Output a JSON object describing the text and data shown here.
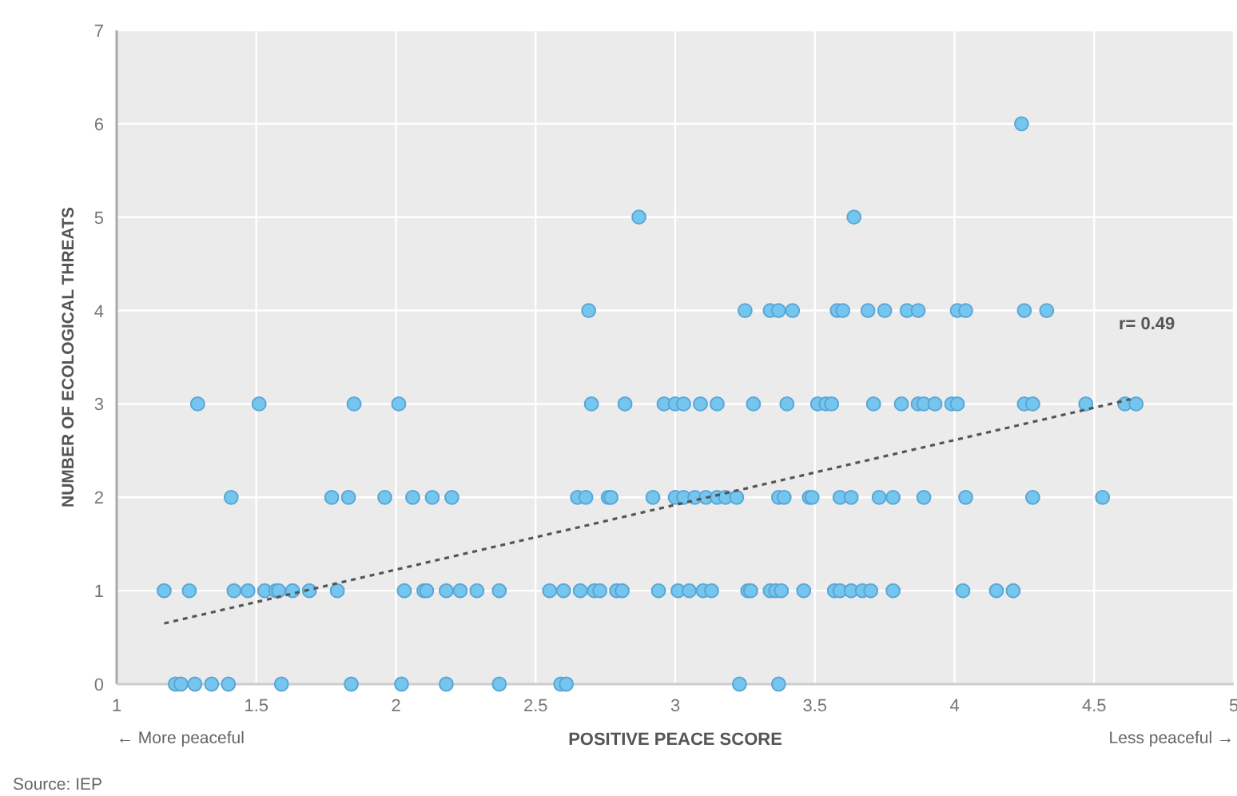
{
  "chart_data": {
    "type": "scatter",
    "xlabel": "POSITIVE PEACE SCORE",
    "ylabel": "NUMBER OF ECOLOGICAL THREATS",
    "xlim": [
      1,
      5
    ],
    "ylim": [
      0,
      7
    ],
    "xticks": [
      1,
      1.5,
      2,
      2.5,
      3,
      3.5,
      4,
      4.5,
      5
    ],
    "yticks": [
      0,
      1,
      2,
      3,
      4,
      5,
      6,
      7
    ],
    "grid": true,
    "marker": "circle",
    "series": [
      {
        "color": "#74c6ef",
        "x": [
          4.24,
          2.87,
          3.64,
          2.69,
          3.25,
          3.34,
          3.37,
          3.42,
          3.58,
          3.6,
          3.69,
          3.75,
          3.83,
          3.87,
          4.01,
          4.04,
          4.25,
          4.33,
          1.29,
          1.51,
          1.85,
          2.01,
          2.7,
          2.82,
          2.96,
          3.0,
          3.03,
          3.09,
          3.15,
          3.28,
          3.4,
          3.51,
          3.54,
          3.56,
          3.71,
          3.81,
          3.87,
          3.89,
          3.93,
          3.99,
          4.01,
          4.25,
          4.28,
          4.47,
          4.61,
          4.65,
          1.41,
          1.77,
          1.83,
          1.96,
          2.06,
          2.13,
          2.2,
          2.65,
          2.68,
          2.76,
          2.77,
          2.92,
          3.0,
          3.03,
          3.07,
          3.11,
          3.15,
          3.18,
          3.22,
          3.37,
          3.39,
          3.48,
          3.49,
          3.59,
          3.63,
          3.73,
          3.78,
          3.89,
          4.04,
          4.28,
          4.53,
          1.17,
          1.26,
          1.42,
          1.47,
          1.53,
          1.57,
          1.58,
          1.63,
          1.69,
          1.79,
          2.03,
          2.1,
          2.11,
          2.18,
          2.23,
          2.29,
          2.37,
          2.55,
          2.6,
          2.66,
          2.71,
          2.73,
          2.79,
          2.81,
          2.94,
          3.01,
          3.05,
          3.1,
          3.13,
          3.26,
          3.27,
          3.34,
          3.36,
          3.38,
          3.46,
          3.57,
          3.59,
          3.63,
          3.67,
          3.7,
          3.78,
          4.03,
          4.15,
          4.21,
          1.21,
          1.23,
          1.28,
          1.34,
          1.4,
          1.59,
          1.84,
          2.02,
          2.18,
          2.37,
          2.59,
          2.61,
          3.23,
          3.37
        ],
        "values": [
          6,
          5,
          5,
          4,
          4,
          4,
          4,
          4,
          4,
          4,
          4,
          4,
          4,
          4,
          4,
          4,
          4,
          4,
          3,
          3,
          3,
          3,
          3,
          3,
          3,
          3,
          3,
          3,
          3,
          3,
          3,
          3,
          3,
          3,
          3,
          3,
          3,
          3,
          3,
          3,
          3,
          3,
          3,
          3,
          3,
          3,
          2,
          2,
          2,
          2,
          2,
          2,
          2,
          2,
          2,
          2,
          2,
          2,
          2,
          2,
          2,
          2,
          2,
          2,
          2,
          2,
          2,
          2,
          2,
          2,
          2,
          2,
          2,
          2,
          2,
          2,
          2,
          1,
          1,
          1,
          1,
          1,
          1,
          1,
          1,
          1,
          1,
          1,
          1,
          1,
          1,
          1,
          1,
          1,
          1,
          1,
          1,
          1,
          1,
          1,
          1,
          1,
          1,
          1,
          1,
          1,
          1,
          1,
          1,
          1,
          1,
          1,
          1,
          1,
          1,
          1,
          1,
          1,
          1,
          1,
          1,
          0,
          0,
          0,
          0,
          0,
          0,
          0,
          0,
          0,
          0,
          0,
          0,
          0,
          0
        ]
      },
      {
        "type": "line",
        "line_style": "dotted",
        "marker": "none",
        "color": "#555555",
        "x": [
          1.17,
          4.63
        ],
        "values": [
          0.65,
          3.05
        ]
      }
    ],
    "annotations": [
      "r= 0.49",
      "← More peaceful",
      "Less peaceful →",
      "Source: IEP"
    ]
  }
}
